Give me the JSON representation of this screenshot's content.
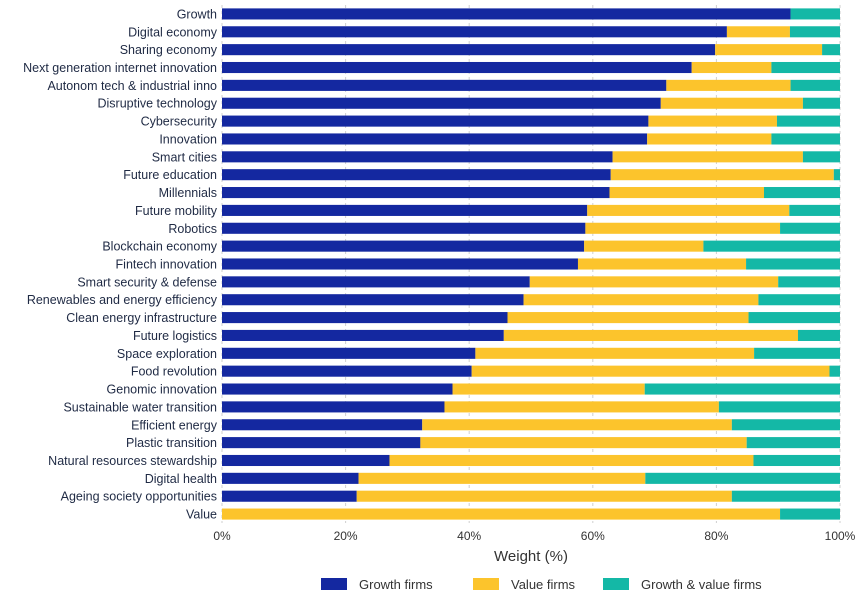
{
  "colors": {
    "growth": "#1428a0",
    "value": "#fcc42c",
    "growth_value": "#14b8a6"
  },
  "chart_data": {
    "type": "bar",
    "orientation": "horizontal",
    "stacked": true,
    "xlabel": "Weight (%)",
    "ylabel": "",
    "xlim": [
      0,
      100
    ],
    "xticks": [
      "0%",
      "20%",
      "40%",
      "60%",
      "80%",
      "100%"
    ],
    "grid": true,
    "legend_position": "bottom",
    "categories": [
      "Growth",
      "Digital economy",
      "Sharing economy",
      "Next generation internet innovation",
      "Autonom tech & industrial inno",
      "Disruptive technology",
      "Cybersecurity",
      "Innovation",
      "Smart cities",
      "Future education",
      "Millennials",
      "Future mobility",
      "Robotics",
      "Blockchain economy",
      "Fintech innovation",
      "Smart security & defense",
      "Renewables and energy efficiency",
      "Clean energy infrastructure",
      "Future logistics",
      "Space exploration",
      "Food revolution",
      "Genomic innovation",
      "Sustainable water transition",
      "Efficient energy",
      "Plastic transition",
      "Natural resources stewardship",
      "Digital health",
      "Ageing society opportunities",
      "Value"
    ],
    "series": [
      {
        "name": "Growth firms",
        "values": [
          92,
          81.7,
          79.8,
          76.0,
          71.9,
          71.0,
          69.0,
          68.8,
          63.2,
          62.9,
          62.7,
          59.1,
          58.8,
          58.6,
          57.6,
          49.8,
          48.8,
          46.2,
          45.6,
          41.0,
          40.4,
          37.3,
          36.0,
          32.4,
          32.1,
          27.1,
          22.1,
          21.8,
          0
        ]
      },
      {
        "name": "Value firms",
        "values": [
          0,
          10.2,
          17.3,
          12.9,
          20.1,
          23.0,
          20.8,
          20.1,
          30.8,
          36.1,
          25.0,
          32.7,
          31.5,
          19.3,
          27.2,
          40.2,
          38.0,
          39.0,
          47.6,
          45.1,
          57.9,
          31.1,
          44.4,
          50.1,
          52.8,
          58.9,
          46.4,
          60.7,
          90.3
        ]
      },
      {
        "name": "Growth & value firms",
        "values": [
          8.0,
          8.1,
          2.9,
          11.1,
          8.0,
          6.0,
          10.2,
          11.1,
          6.0,
          1.0,
          12.3,
          8.2,
          9.7,
          22.1,
          15.2,
          10.0,
          13.2,
          14.8,
          6.8,
          13.9,
          1.7,
          31.6,
          19.6,
          17.5,
          15.1,
          14.0,
          31.5,
          17.5,
          9.7
        ]
      }
    ]
  }
}
